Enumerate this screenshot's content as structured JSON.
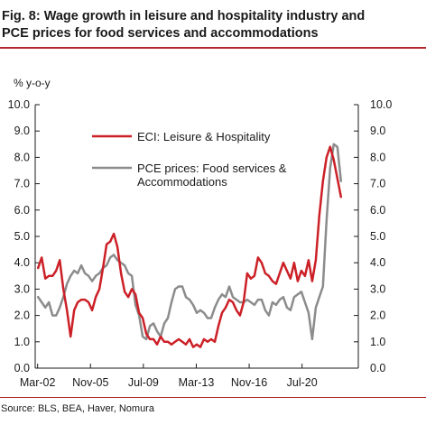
{
  "header": {
    "title_line1": "Fig. 8: Wage growth in leisure and hospitality industry and",
    "title_line2": "PCE prices for food services and accommodations"
  },
  "footer": {
    "source": "Source: BLS, BEA, Haver, Nomura"
  },
  "colors": {
    "accent": "#b4282d",
    "eci": "#cc2027",
    "pce": "#8c8c8c"
  },
  "chart_data": {
    "type": "line",
    "ylabel": "% y-o-y",
    "ylim": [
      0,
      10
    ],
    "y_ticks": [
      0,
      1,
      2,
      3,
      4,
      5,
      6,
      7,
      8,
      9,
      10
    ],
    "y_tick_labels": [
      "0.0",
      "1.0",
      "2.0",
      "3.0",
      "4.0",
      "5.0",
      "6.0",
      "7.0",
      "8.0",
      "9.0",
      "10.0"
    ],
    "x_range": [
      2002.0,
      2024.4
    ],
    "x_ticks": [
      2002.167,
      2005.833,
      2009.5,
      2013.167,
      2016.833,
      2020.5
    ],
    "x_tick_labels": [
      "Mar-02",
      "Nov-05",
      "Jul-09",
      "Mar-13",
      "Nov-16",
      "Jul-20"
    ],
    "grid": false,
    "legend_position": "inside top-left",
    "series": [
      {
        "name": "ECI: Leisure & Hospitality",
        "color": "#cc2027",
        "points": [
          [
            2002.2,
            3.8
          ],
          [
            2002.45,
            4.2
          ],
          [
            2002.7,
            3.4
          ],
          [
            2002.95,
            3.5
          ],
          [
            2003.2,
            3.5
          ],
          [
            2003.45,
            3.7
          ],
          [
            2003.7,
            4.1
          ],
          [
            2003.95,
            3.0
          ],
          [
            2004.2,
            2.2
          ],
          [
            2004.45,
            1.2
          ],
          [
            2004.7,
            2.2
          ],
          [
            2004.95,
            2.5
          ],
          [
            2005.2,
            2.6
          ],
          [
            2005.45,
            2.6
          ],
          [
            2005.7,
            2.5
          ],
          [
            2005.95,
            2.2
          ],
          [
            2006.2,
            2.7
          ],
          [
            2006.45,
            3.0
          ],
          [
            2006.7,
            3.8
          ],
          [
            2006.95,
            4.7
          ],
          [
            2007.2,
            4.8
          ],
          [
            2007.45,
            5.1
          ],
          [
            2007.7,
            4.6
          ],
          [
            2007.95,
            3.6
          ],
          [
            2008.2,
            2.9
          ],
          [
            2008.45,
            2.7
          ],
          [
            2008.7,
            3.0
          ],
          [
            2008.95,
            2.8
          ],
          [
            2009.2,
            2.1
          ],
          [
            2009.45,
            1.9
          ],
          [
            2009.7,
            1.3
          ],
          [
            2009.95,
            1.1
          ],
          [
            2010.2,
            1.1
          ],
          [
            2010.45,
            0.9
          ],
          [
            2010.7,
            1.2
          ],
          [
            2010.95,
            1.0
          ],
          [
            2011.2,
            1.0
          ],
          [
            2011.45,
            0.9
          ],
          [
            2011.7,
            1.0
          ],
          [
            2011.95,
            1.1
          ],
          [
            2012.2,
            1.0
          ],
          [
            2012.45,
            0.9
          ],
          [
            2012.7,
            1.1
          ],
          [
            2012.95,
            0.8
          ],
          [
            2013.2,
            0.9
          ],
          [
            2013.45,
            0.8
          ],
          [
            2013.7,
            1.1
          ],
          [
            2013.95,
            1.0
          ],
          [
            2014.2,
            1.1
          ],
          [
            2014.45,
            1.0
          ],
          [
            2014.7,
            1.6
          ],
          [
            2014.95,
            2.1
          ],
          [
            2015.2,
            2.3
          ],
          [
            2015.45,
            2.6
          ],
          [
            2015.7,
            2.5
          ],
          [
            2015.95,
            2.2
          ],
          [
            2016.2,
            2.0
          ],
          [
            2016.45,
            2.5
          ],
          [
            2016.7,
            3.6
          ],
          [
            2016.95,
            3.4
          ],
          [
            2017.2,
            3.5
          ],
          [
            2017.45,
            4.2
          ],
          [
            2017.7,
            4.0
          ],
          [
            2017.95,
            3.6
          ],
          [
            2018.2,
            3.5
          ],
          [
            2018.45,
            3.3
          ],
          [
            2018.7,
            3.2
          ],
          [
            2018.95,
            3.6
          ],
          [
            2019.2,
            4.0
          ],
          [
            2019.45,
            3.7
          ],
          [
            2019.7,
            3.4
          ],
          [
            2019.95,
            4.0
          ],
          [
            2020.2,
            3.3
          ],
          [
            2020.45,
            3.7
          ],
          [
            2020.7,
            3.5
          ],
          [
            2020.95,
            4.1
          ],
          [
            2021.2,
            3.3
          ],
          [
            2021.45,
            4.1
          ],
          [
            2021.7,
            5.8
          ],
          [
            2021.95,
            7.1
          ],
          [
            2022.2,
            8.0
          ],
          [
            2022.45,
            8.4
          ],
          [
            2022.7,
            7.9
          ],
          [
            2022.95,
            7.2
          ],
          [
            2023.2,
            6.5
          ]
        ]
      },
      {
        "name": "PCE prices: Food services & Accommodations",
        "color": "#8c8c8c",
        "points": [
          [
            2002.2,
            2.7
          ],
          [
            2002.45,
            2.5
          ],
          [
            2002.7,
            2.3
          ],
          [
            2002.95,
            2.5
          ],
          [
            2003.2,
            2.0
          ],
          [
            2003.45,
            2.0
          ],
          [
            2003.7,
            2.3
          ],
          [
            2003.95,
            2.7
          ],
          [
            2004.2,
            3.2
          ],
          [
            2004.45,
            3.5
          ],
          [
            2004.7,
            3.7
          ],
          [
            2004.95,
            3.6
          ],
          [
            2005.2,
            3.9
          ],
          [
            2005.45,
            3.6
          ],
          [
            2005.7,
            3.5
          ],
          [
            2005.95,
            3.3
          ],
          [
            2006.2,
            3.5
          ],
          [
            2006.45,
            3.6
          ],
          [
            2006.7,
            3.8
          ],
          [
            2006.95,
            3.9
          ],
          [
            2007.2,
            4.2
          ],
          [
            2007.45,
            4.3
          ],
          [
            2007.7,
            4.1
          ],
          [
            2007.95,
            4.0
          ],
          [
            2008.2,
            3.9
          ],
          [
            2008.45,
            3.6
          ],
          [
            2008.7,
            3.5
          ],
          [
            2008.95,
            2.4
          ],
          [
            2009.2,
            2.0
          ],
          [
            2009.45,
            1.2
          ],
          [
            2009.7,
            1.1
          ],
          [
            2009.95,
            1.6
          ],
          [
            2010.2,
            1.7
          ],
          [
            2010.45,
            1.4
          ],
          [
            2010.7,
            1.2
          ],
          [
            2010.95,
            1.7
          ],
          [
            2011.2,
            1.9
          ],
          [
            2011.45,
            2.5
          ],
          [
            2011.7,
            3.0
          ],
          [
            2011.95,
            3.1
          ],
          [
            2012.2,
            3.1
          ],
          [
            2012.45,
            2.7
          ],
          [
            2012.7,
            2.6
          ],
          [
            2012.95,
            2.4
          ],
          [
            2013.2,
            2.1
          ],
          [
            2013.45,
            2.2
          ],
          [
            2013.7,
            2.1
          ],
          [
            2013.95,
            1.9
          ],
          [
            2014.2,
            1.9
          ],
          [
            2014.45,
            2.3
          ],
          [
            2014.7,
            2.6
          ],
          [
            2014.95,
            2.8
          ],
          [
            2015.2,
            2.7
          ],
          [
            2015.45,
            3.1
          ],
          [
            2015.7,
            2.7
          ],
          [
            2015.95,
            2.6
          ],
          [
            2016.2,
            2.5
          ],
          [
            2016.45,
            2.5
          ],
          [
            2016.7,
            2.6
          ],
          [
            2016.95,
            2.5
          ],
          [
            2017.2,
            2.4
          ],
          [
            2017.45,
            2.6
          ],
          [
            2017.7,
            2.6
          ],
          [
            2017.95,
            2.2
          ],
          [
            2018.2,
            2.0
          ],
          [
            2018.45,
            2.5
          ],
          [
            2018.7,
            2.4
          ],
          [
            2018.95,
            2.6
          ],
          [
            2019.2,
            2.7
          ],
          [
            2019.45,
            2.3
          ],
          [
            2019.7,
            2.2
          ],
          [
            2019.95,
            2.7
          ],
          [
            2020.2,
            2.8
          ],
          [
            2020.45,
            2.9
          ],
          [
            2020.7,
            2.5
          ],
          [
            2020.95,
            2.1
          ],
          [
            2021.2,
            1.1
          ],
          [
            2021.45,
            2.3
          ],
          [
            2021.7,
            2.7
          ],
          [
            2021.95,
            3.1
          ],
          [
            2022.2,
            5.6
          ],
          [
            2022.45,
            7.6
          ],
          [
            2022.7,
            8.5
          ],
          [
            2022.95,
            8.4
          ],
          [
            2023.2,
            7.1
          ]
        ]
      }
    ]
  }
}
